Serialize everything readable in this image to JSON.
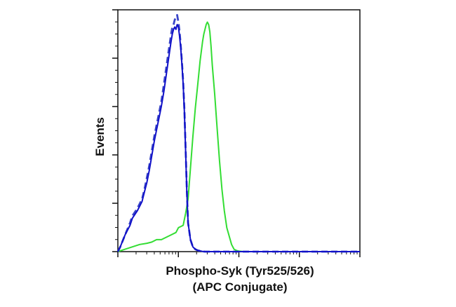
{
  "chart_data": {
    "type": "line",
    "chart_kind": "flow cytometry histogram overlay",
    "xlabel_line1": "Phospho-Syk (Tyr525/526)",
    "xlabel_line2": "(APC Conjugate)",
    "ylabel": "Events",
    "x_scale": "log",
    "xlim": [
      0,
      100
    ],
    "ylim": [
      0,
      100
    ],
    "grid": false,
    "legend": "none",
    "tick_labels_shown": false,
    "series": [
      {
        "color": "#1010c8",
        "style": "solid",
        "x": [
          0,
          1,
          3,
          5,
          6,
          8,
          9,
          10,
          11,
          12,
          13,
          14,
          15,
          16,
          17,
          18,
          19,
          20,
          21,
          22,
          22.5,
          23,
          23.5,
          24,
          24.5,
          25,
          25.5,
          26,
          26.5,
          27,
          27.5,
          28,
          28.5,
          29,
          30,
          31,
          32,
          33,
          34,
          35,
          36,
          38,
          40,
          45,
          50,
          55,
          60,
          70,
          80,
          90,
          100
        ],
        "y": [
          0,
          2,
          7,
          11,
          14,
          17,
          19,
          21,
          25,
          29,
          34,
          40,
          46,
          51,
          56,
          61,
          67,
          74,
          81,
          88,
          91,
          93,
          94,
          93,
          95,
          94,
          90,
          85,
          78,
          70,
          58,
          42,
          25,
          12,
          5,
          2,
          1,
          0.5,
          0.3,
          0.1,
          0,
          0,
          0,
          0,
          0,
          0,
          0,
          0,
          0,
          0,
          0
        ]
      },
      {
        "color": "#3a46c8",
        "style": "dashed",
        "x": [
          0,
          1,
          3,
          5,
          6,
          8,
          9,
          10,
          11,
          12,
          13,
          14,
          15,
          16,
          17,
          18,
          19,
          20,
          21,
          22,
          22.5,
          23,
          23.5,
          24,
          24.5,
          25,
          25.5,
          26,
          26.5,
          27,
          27.5,
          28,
          28.5,
          29,
          30,
          31,
          32,
          33,
          34,
          35,
          36,
          38,
          40,
          45,
          50,
          55,
          60,
          70,
          80,
          90,
          100
        ],
        "y": [
          0,
          2,
          7,
          12,
          15,
          18,
          20,
          22,
          26,
          31,
          36,
          42,
          48,
          53,
          58,
          63,
          70,
          77,
          84,
          91,
          94,
          95,
          97,
          98,
          99,
          96,
          92,
          86,
          79,
          71,
          59,
          43,
          26,
          12,
          5,
          2,
          1,
          0.5,
          0.3,
          0.1,
          0,
          0,
          0,
          0,
          0,
          0,
          0,
          0,
          0,
          0,
          0
        ]
      },
      {
        "color": "#33dd33",
        "style": "solid",
        "x": [
          0,
          3,
          6,
          9,
          12,
          14,
          16,
          18,
          20,
          22,
          24,
          25,
          27,
          28,
          29,
          30,
          31,
          32,
          33,
          34,
          35,
          35.5,
          36,
          36.5,
          37,
          37.5,
          38,
          38.5,
          39,
          40,
          41,
          42,
          43,
          44,
          45,
          47,
          48,
          49,
          50,
          52,
          55,
          60,
          70,
          80,
          90,
          100
        ],
        "y": [
          0,
          1,
          2,
          3,
          3.5,
          4,
          5,
          5,
          6,
          7,
          8,
          10,
          11,
          16,
          22,
          35,
          48,
          60,
          70,
          80,
          88,
          91,
          93,
          95,
          96,
          95,
          92,
          86,
          78,
          66,
          52,
          38,
          26,
          17,
          10,
          3,
          1,
          0.5,
          0.2,
          0,
          0,
          0,
          0,
          0,
          0,
          0
        ]
      }
    ]
  }
}
